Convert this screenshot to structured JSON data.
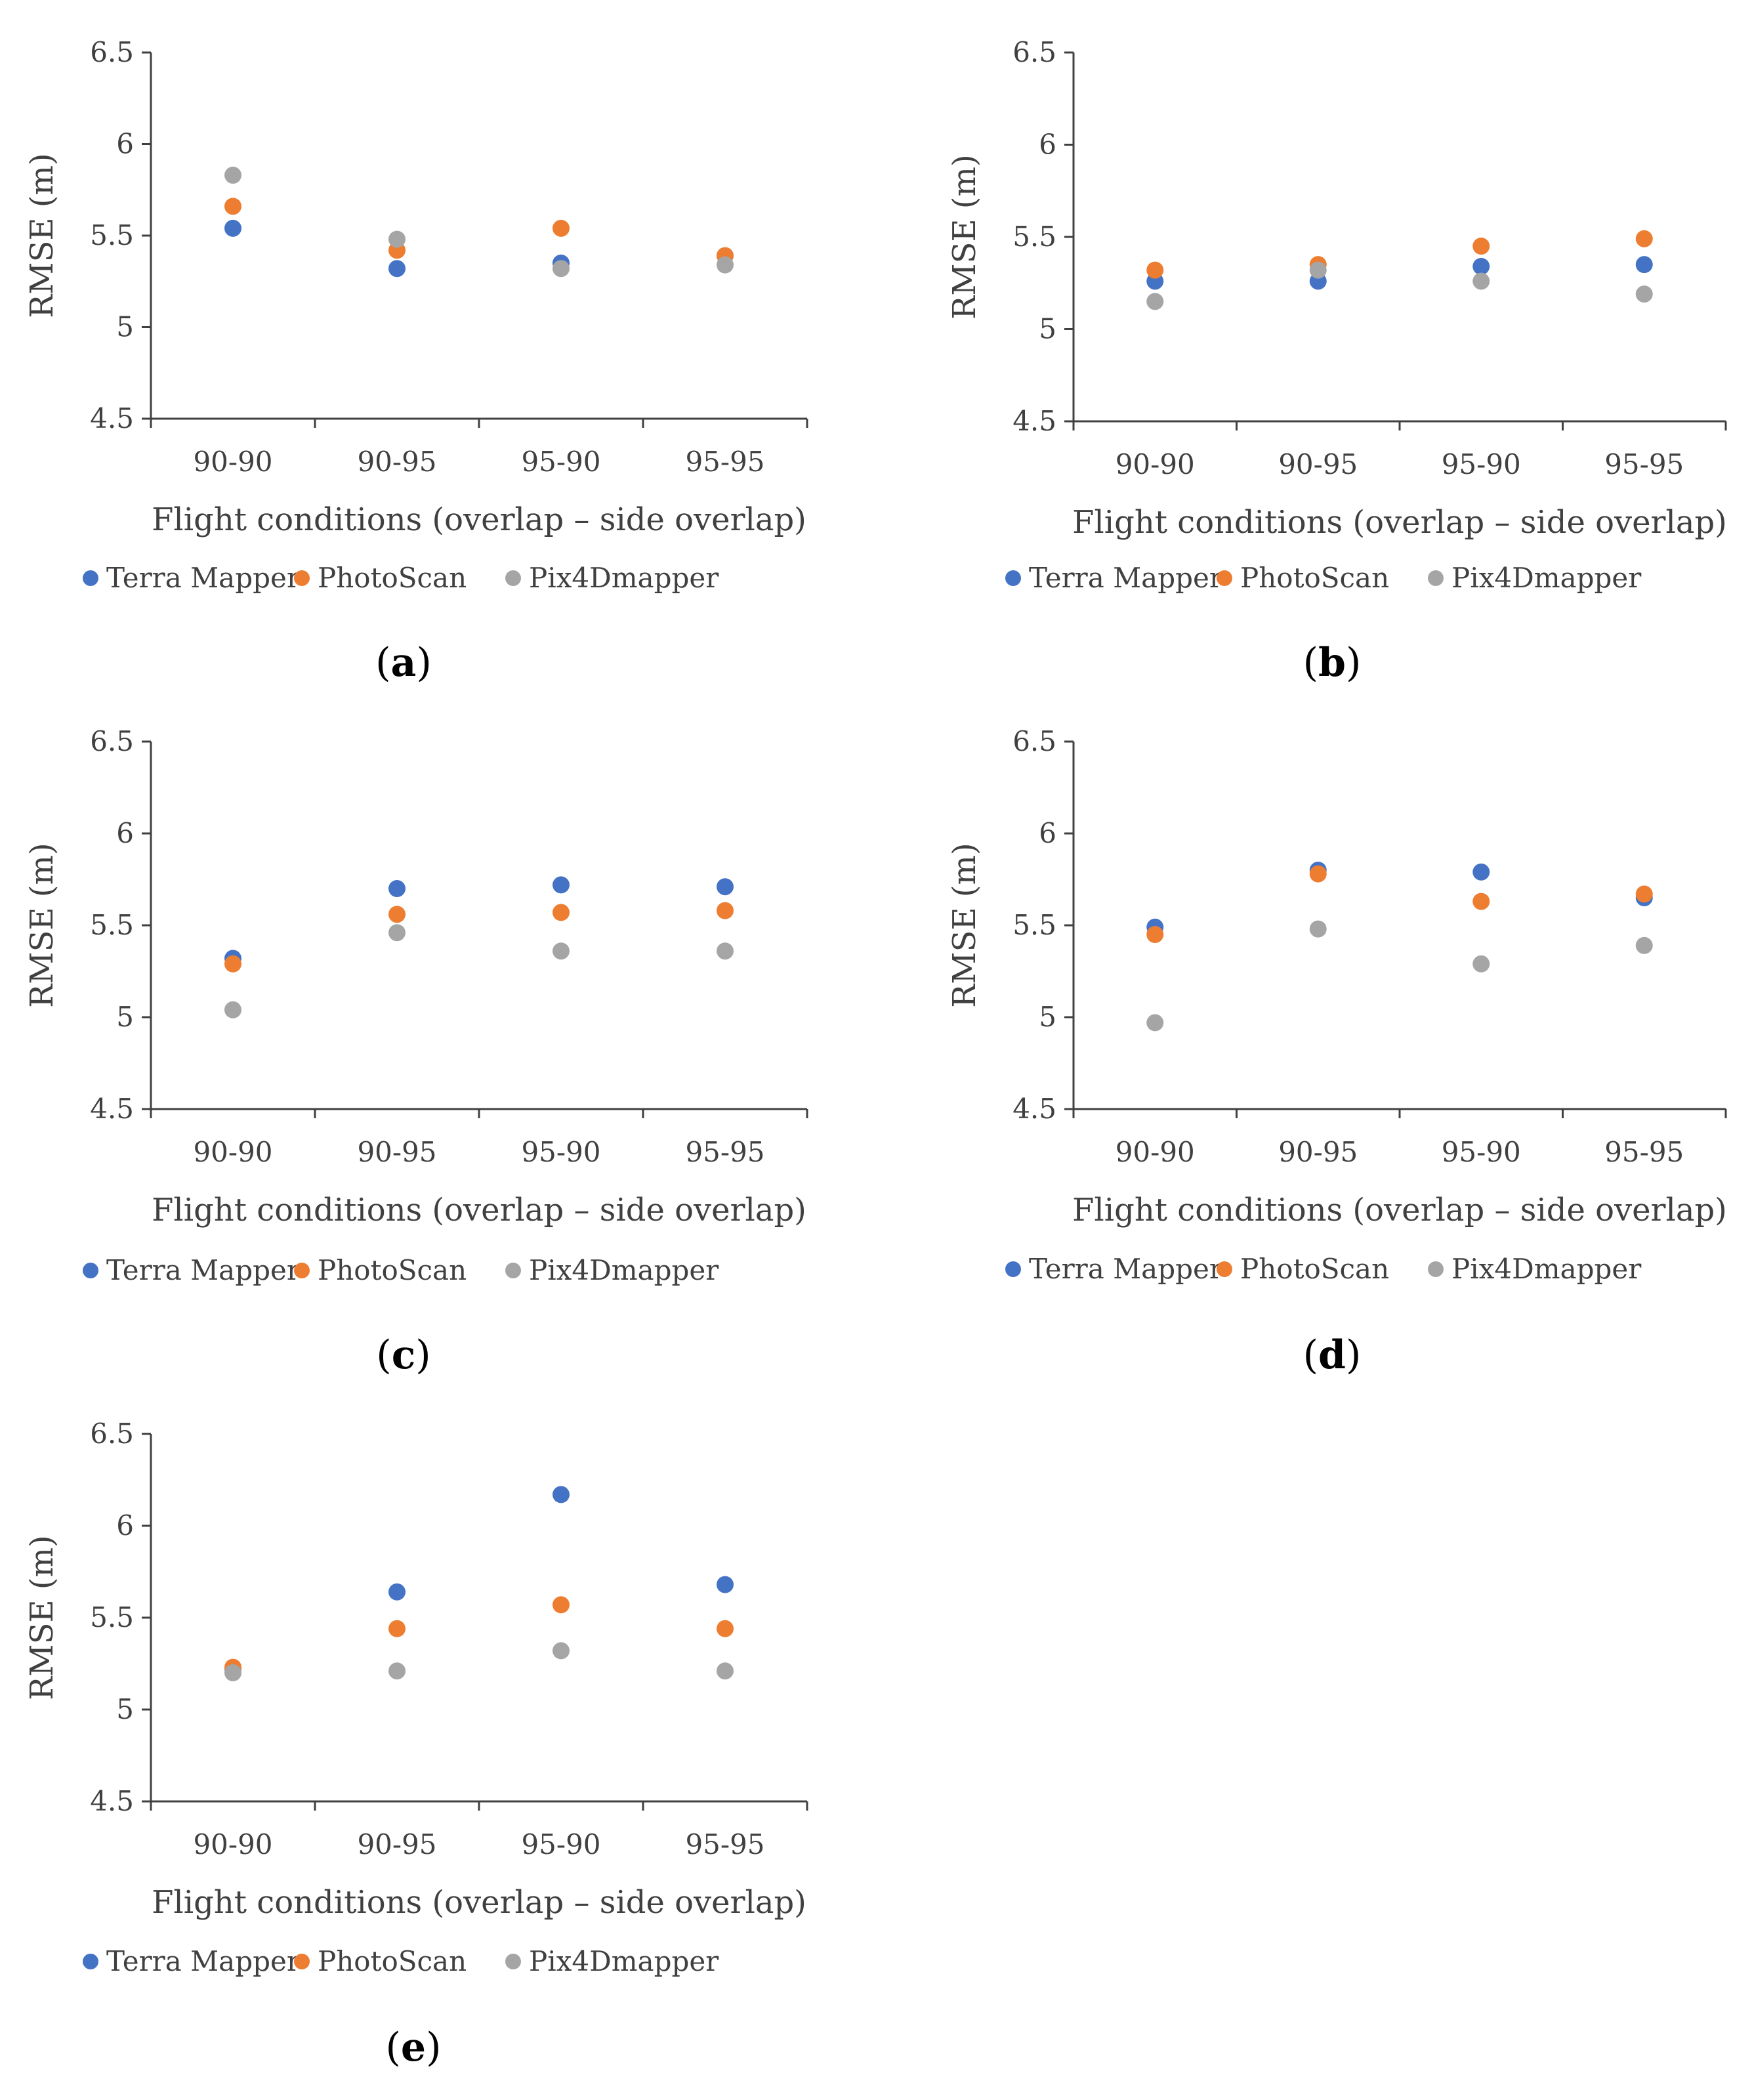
{
  "figure": {
    "panels": [
      {
        "id": "a",
        "caption_prefix": "(",
        "caption_letter": "a",
        "caption_suffix": ")"
      },
      {
        "id": "b",
        "caption_prefix": "(",
        "caption_letter": "b",
        "caption_suffix": ")"
      },
      {
        "id": "c",
        "caption_prefix": "(",
        "caption_letter": "c",
        "caption_suffix": ")"
      },
      {
        "id": "d",
        "caption_prefix": "(",
        "caption_letter": "d",
        "caption_suffix": ")"
      },
      {
        "id": "e",
        "caption_prefix": "(",
        "caption_letter": "e",
        "caption_suffix": ")"
      }
    ]
  },
  "colors": {
    "Terra Mapper": "#4472c4",
    "PhotoScan": "#ed7d31",
    "Pix4Dmapper": "#a5a5a5",
    "axis": "#404040"
  },
  "chart_data": [
    {
      "panel": "a",
      "type": "scatter",
      "title": "",
      "xlabel": "Flight conditions (overlap – side overlap)",
      "ylabel": "RMSE (m)",
      "categories": [
        "90-90",
        "90-95",
        "95-90",
        "95-95"
      ],
      "ylim": [
        4.5,
        6.5
      ],
      "yticks": [
        "4.5",
        "5",
        "5.5",
        "6",
        "6.5"
      ],
      "grid": false,
      "legend_position": "bottom",
      "series": [
        {
          "name": "Terra Mapper",
          "values": [
            5.54,
            5.32,
            5.35,
            5.39
          ]
        },
        {
          "name": "PhotoScan",
          "values": [
            5.66,
            5.42,
            5.54,
            5.39
          ]
        },
        {
          "name": "Pix4Dmapper",
          "values": [
            5.83,
            5.48,
            5.32,
            5.34
          ]
        }
      ]
    },
    {
      "panel": "b",
      "type": "scatter",
      "title": "",
      "xlabel": "Flight conditions (overlap – side overlap)",
      "ylabel": "RMSE (m)",
      "categories": [
        "90-90",
        "90-95",
        "95-90",
        "95-95"
      ],
      "ylim": [
        4.5,
        6.5
      ],
      "yticks": [
        "4.5",
        "5",
        "5.5",
        "6",
        "6.5"
      ],
      "grid": false,
      "legend_position": "bottom",
      "series": [
        {
          "name": "Terra Mapper",
          "values": [
            5.26,
            5.26,
            5.34,
            5.35
          ]
        },
        {
          "name": "PhotoScan",
          "values": [
            5.32,
            5.35,
            5.45,
            5.49
          ]
        },
        {
          "name": "Pix4Dmapper",
          "values": [
            5.15,
            5.32,
            5.26,
            5.19
          ]
        }
      ]
    },
    {
      "panel": "c",
      "type": "scatter",
      "title": "",
      "xlabel": "Flight conditions (overlap – side overlap)",
      "ylabel": "RMSE (m)",
      "categories": [
        "90-90",
        "90-95",
        "95-90",
        "95-95"
      ],
      "ylim": [
        4.5,
        6.5
      ],
      "yticks": [
        "4.5",
        "5",
        "5.5",
        "6",
        "6.5"
      ],
      "grid": false,
      "legend_position": "bottom",
      "series": [
        {
          "name": "Terra Mapper",
          "values": [
            5.32,
            5.7,
            5.72,
            5.71
          ]
        },
        {
          "name": "PhotoScan",
          "values": [
            5.29,
            5.56,
            5.57,
            5.58
          ]
        },
        {
          "name": "Pix4Dmapper",
          "values": [
            5.04,
            5.46,
            5.36,
            5.36
          ]
        }
      ]
    },
    {
      "panel": "d",
      "type": "scatter",
      "title": "",
      "xlabel": "Flight conditions (overlap – side overlap)",
      "ylabel": "RMSE (m)",
      "categories": [
        "90-90",
        "90-95",
        "95-90",
        "95-95"
      ],
      "ylim": [
        4.5,
        6.5
      ],
      "yticks": [
        "4.5",
        "5",
        "5.5",
        "6",
        "6.5"
      ],
      "grid": false,
      "legend_position": "bottom",
      "series": [
        {
          "name": "Terra Mapper",
          "values": [
            5.49,
            5.8,
            5.79,
            5.65
          ]
        },
        {
          "name": "PhotoScan",
          "values": [
            5.45,
            5.78,
            5.63,
            5.67
          ]
        },
        {
          "name": "Pix4Dmapper",
          "values": [
            4.97,
            5.48,
            5.29,
            5.39
          ]
        }
      ]
    },
    {
      "panel": "e",
      "type": "scatter",
      "title": "",
      "xlabel": "Flight conditions (overlap – side overlap)",
      "ylabel": "RMSE (m)",
      "categories": [
        "90-90",
        "90-95",
        "95-90",
        "95-95"
      ],
      "ylim": [
        4.5,
        6.5
      ],
      "yticks": [
        "4.5",
        "5",
        "5.5",
        "6",
        "6.5"
      ],
      "grid": false,
      "legend_position": "bottom",
      "series": [
        {
          "name": "Terra Mapper",
          "values": [
            5.22,
            5.64,
            6.17,
            5.68
          ]
        },
        {
          "name": "PhotoScan",
          "values": [
            5.23,
            5.44,
            5.57,
            5.44
          ]
        },
        {
          "name": "Pix4Dmapper",
          "values": [
            5.2,
            5.21,
            5.32,
            5.21
          ]
        }
      ]
    }
  ]
}
